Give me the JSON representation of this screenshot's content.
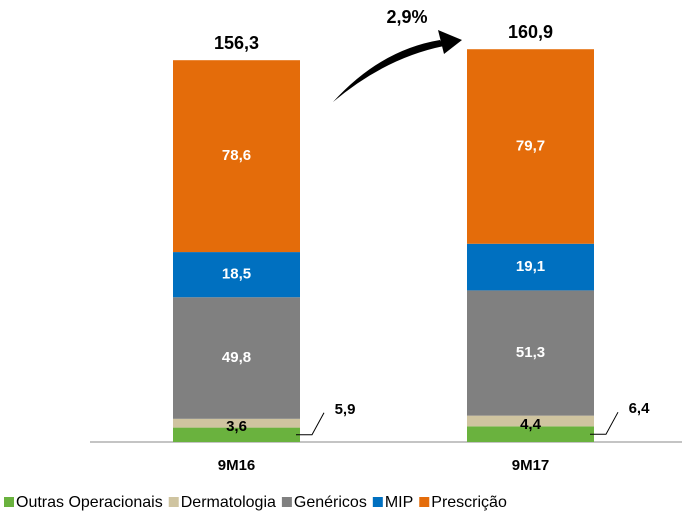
{
  "chart_data": {
    "type": "stacked_bar",
    "categories": [
      "9M16",
      "9M17"
    ],
    "series": [
      {
        "name": "Outras Operacionais",
        "color": "#6ab23e",
        "values": [
          5.9,
          6.4
        ],
        "value_labels": [
          "5,9",
          "6,4"
        ]
      },
      {
        "name": "Dermatologia",
        "color": "#cfc4a0",
        "values": [
          3.6,
          4.4
        ],
        "value_labels": [
          "3,6",
          "4,4"
        ]
      },
      {
        "name": "Genéricos",
        "color": "#808080",
        "values": [
          49.8,
          51.3
        ],
        "value_labels": [
          "49,8",
          "51,3"
        ]
      },
      {
        "name": "MIP",
        "color": "#0070c0",
        "values": [
          18.5,
          19.1
        ],
        "value_labels": [
          "18,5",
          "19,1"
        ]
      },
      {
        "name": "Prescrição",
        "color": "#e46c0a",
        "values": [
          78.6,
          79.7
        ],
        "value_labels": [
          "78,6",
          "79,7"
        ]
      }
    ],
    "totals": [
      156.3,
      160.9
    ],
    "total_labels": [
      "156,3",
      "160,9"
    ],
    "annotation": "2,9%",
    "ylim": [
      0,
      170
    ],
    "legend": "bottom"
  }
}
